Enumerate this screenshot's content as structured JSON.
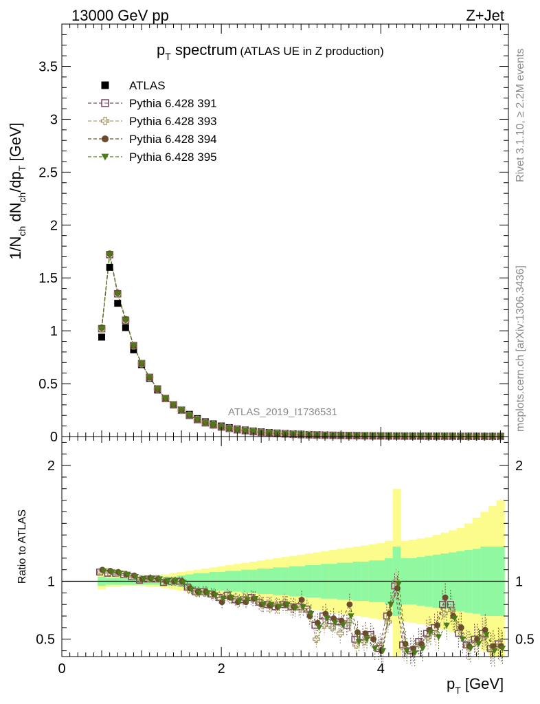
{
  "header": {
    "left": "13000 GeV pp",
    "right": "Z+Jet"
  },
  "plot_title": {
    "main": "p",
    "main_sub": "T",
    "main_rest": " spectrum",
    "paren": "(ATLAS UE in Z production)"
  },
  "side_labels": {
    "rivet": "Rivet 3.1.10, ≥ 2.2M events",
    "mcplots": "mcplots.cern.ch [arXiv:1306.3436]"
  },
  "watermark": "ATLAS_2019_I1736531",
  "axes": {
    "ylabel_main": "1/N",
    "ylabel_main_sub1": "ch",
    "ylabel_main_mid": " dN",
    "ylabel_main_sub2": "ch",
    "ylabel_main_mid2": "/dp",
    "ylabel_main_sub3": "T",
    "ylabel_main_rest": " [GeV]",
    "ylabel_ratio": "Ratio to ATLAS",
    "xlabel": "p",
    "xlabel_sub": "T",
    "xlabel_rest": " [GeV]"
  },
  "colors": {
    "atlas": "#000000",
    "p391": "#7b4a62",
    "p393": "#a89a6c",
    "p394": "#6b4a2e",
    "p395": "#4d7a1a",
    "band_green": "#90f8a0",
    "band_yellow": "#fcfc8c"
  },
  "chart_data": [
    {
      "type": "scatter",
      "title": "p_T spectrum (ATLAS UE in Z production)",
      "xlabel": "p_T [GeV]",
      "ylabel": "1/N_ch dN_ch/dp_T [GeV]",
      "xlim": [
        0,
        5.6
      ],
      "ylim": [
        0,
        3.9
      ],
      "yticks": [
        0,
        0.5,
        1,
        1.5,
        2,
        2.5,
        3,
        3.5
      ],
      "ytick_labels": [
        "0",
        "0.5",
        "1",
        "1.5",
        "2",
        "2.5",
        "3",
        "3.5"
      ],
      "legend_position": "top-left",
      "x": [
        0.5,
        0.6,
        0.7,
        0.8,
        0.9,
        1.0,
        1.1,
        1.2,
        1.3,
        1.4,
        1.5,
        1.6,
        1.7,
        1.8,
        1.9,
        2.0,
        2.1,
        2.2,
        2.3,
        2.4,
        2.5,
        2.6,
        2.7,
        2.8,
        2.9,
        3.0,
        3.1,
        3.2,
        3.3,
        3.4,
        3.5,
        3.6,
        3.7,
        3.8,
        3.9,
        4.0,
        4.1,
        4.2,
        4.3,
        4.4,
        4.5,
        4.6,
        4.7,
        4.8,
        4.9,
        5.0,
        5.1,
        5.2,
        5.3,
        5.4,
        5.5
      ],
      "series": [
        {
          "name": "ATLAS",
          "marker": "filled-square",
          "values": [
            0.94,
            1.6,
            1.26,
            1.03,
            0.82,
            0.68,
            0.55,
            0.44,
            0.36,
            0.3,
            0.25,
            0.21,
            0.17,
            0.14,
            0.12,
            0.1,
            0.085,
            0.072,
            0.062,
            0.053,
            0.045,
            0.039,
            0.034,
            0.03,
            0.026,
            0.023,
            0.02,
            0.018,
            0.016,
            0.014,
            0.013,
            0.012,
            0.011,
            0.01,
            0.009,
            0.008,
            0.008,
            0.007,
            0.007,
            0.006,
            0.006,
            0.005,
            0.005,
            0.005,
            0.004,
            0.004,
            0.004,
            0.004,
            0.003,
            0.003,
            0.003
          ]
        },
        {
          "name": "Pythia 6.428 391",
          "marker": "open-square",
          "values": [
            1.02,
            1.72,
            1.35,
            1.1,
            0.86,
            0.69,
            0.56,
            0.45,
            0.36,
            0.3,
            0.25,
            0.2,
            0.16,
            0.13,
            0.11,
            0.09,
            0.077,
            0.064,
            0.055,
            0.046,
            0.039,
            0.033,
            0.029,
            0.025,
            0.021,
            0.018,
            0.016,
            0.014,
            0.012,
            0.011,
            0.01,
            0.009,
            0.008,
            0.007,
            0.006,
            0.006,
            0.005,
            0.005,
            0.004,
            0.004,
            0.004,
            0.003,
            0.003,
            0.003,
            0.003,
            0.002,
            0.002,
            0.002,
            0.002,
            0.002,
            0.002
          ]
        },
        {
          "name": "Pythia 6.428 393",
          "marker": "open-cross",
          "values": [
            1.02,
            1.72,
            1.35,
            1.1,
            0.86,
            0.69,
            0.56,
            0.45,
            0.36,
            0.3,
            0.25,
            0.2,
            0.16,
            0.13,
            0.11,
            0.09,
            0.077,
            0.064,
            0.055,
            0.046,
            0.039,
            0.033,
            0.029,
            0.025,
            0.021,
            0.018,
            0.016,
            0.014,
            0.012,
            0.011,
            0.01,
            0.009,
            0.008,
            0.007,
            0.006,
            0.006,
            0.005,
            0.005,
            0.004,
            0.004,
            0.004,
            0.003,
            0.003,
            0.003,
            0.003,
            0.002,
            0.002,
            0.002,
            0.002,
            0.002,
            0.002
          ]
        },
        {
          "name": "Pythia 6.428 394",
          "marker": "filled-circle",
          "values": [
            1.03,
            1.73,
            1.36,
            1.11,
            0.86,
            0.69,
            0.56,
            0.45,
            0.36,
            0.3,
            0.25,
            0.2,
            0.16,
            0.13,
            0.11,
            0.09,
            0.077,
            0.064,
            0.055,
            0.046,
            0.039,
            0.033,
            0.029,
            0.025,
            0.021,
            0.018,
            0.016,
            0.014,
            0.012,
            0.011,
            0.01,
            0.009,
            0.008,
            0.007,
            0.006,
            0.006,
            0.005,
            0.005,
            0.004,
            0.004,
            0.004,
            0.003,
            0.003,
            0.003,
            0.003,
            0.002,
            0.002,
            0.002,
            0.002,
            0.002,
            0.002
          ]
        },
        {
          "name": "Pythia 6.428 395",
          "marker": "filled-triangle-down",
          "values": [
            1.02,
            1.72,
            1.35,
            1.1,
            0.86,
            0.69,
            0.56,
            0.45,
            0.36,
            0.3,
            0.25,
            0.2,
            0.16,
            0.13,
            0.11,
            0.09,
            0.077,
            0.064,
            0.055,
            0.046,
            0.039,
            0.033,
            0.029,
            0.025,
            0.021,
            0.018,
            0.016,
            0.014,
            0.012,
            0.011,
            0.01,
            0.009,
            0.008,
            0.007,
            0.006,
            0.006,
            0.005,
            0.005,
            0.004,
            0.004,
            0.004,
            0.003,
            0.003,
            0.003,
            0.003,
            0.002,
            0.002,
            0.002,
            0.002,
            0.002,
            0.002
          ]
        }
      ]
    },
    {
      "type": "scatter",
      "title": "",
      "xlabel": "p_T [GeV]",
      "ylabel": "Ratio to ATLAS",
      "xlim": [
        0,
        5.6
      ],
      "ylim": [
        0.35,
        2.25
      ],
      "xticks": [
        0,
        2,
        4
      ],
      "xtick_labels": [
        "0",
        "2",
        "4"
      ],
      "yticks": [
        0.5,
        1,
        2
      ],
      "ytick_labels": [
        "0.5",
        "1",
        "2"
      ],
      "reference_line": 1,
      "x": [
        0.5,
        0.6,
        0.7,
        0.8,
        0.9,
        1.0,
        1.1,
        1.2,
        1.3,
        1.4,
        1.5,
        1.6,
        1.7,
        1.8,
        1.9,
        2.0,
        2.1,
        2.2,
        2.3,
        2.4,
        2.5,
        2.6,
        2.7,
        2.8,
        2.9,
        3.0,
        3.1,
        3.2,
        3.3,
        3.4,
        3.5,
        3.6,
        3.7,
        3.8,
        3.9,
        4.0,
        4.1,
        4.2,
        4.3,
        4.4,
        4.5,
        4.6,
        4.7,
        4.8,
        4.9,
        5.0,
        5.1,
        5.2,
        5.3,
        5.4,
        5.5
      ],
      "band_stat_half_width": [
        0.04,
        0.03,
        0.03,
        0.03,
        0.03,
        0.03,
        0.03,
        0.03,
        0.04,
        0.04,
        0.05,
        0.06,
        0.07,
        0.07,
        0.08,
        0.08,
        0.09,
        0.09,
        0.1,
        0.1,
        0.11,
        0.11,
        0.12,
        0.12,
        0.13,
        0.13,
        0.14,
        0.14,
        0.15,
        0.15,
        0.16,
        0.16,
        0.17,
        0.17,
        0.18,
        0.18,
        0.2,
        0.3,
        0.2,
        0.2,
        0.21,
        0.22,
        0.23,
        0.24,
        0.25,
        0.26,
        0.27,
        0.28,
        0.3,
        0.3,
        0.3
      ],
      "band_total_half_width": [
        0.07,
        0.05,
        0.05,
        0.04,
        0.04,
        0.04,
        0.05,
        0.05,
        0.06,
        0.07,
        0.08,
        0.09,
        0.1,
        0.11,
        0.12,
        0.13,
        0.14,
        0.15,
        0.16,
        0.17,
        0.18,
        0.19,
        0.2,
        0.21,
        0.22,
        0.23,
        0.24,
        0.25,
        0.26,
        0.27,
        0.28,
        0.29,
        0.3,
        0.31,
        0.32,
        0.33,
        0.35,
        0.8,
        0.35,
        0.36,
        0.37,
        0.38,
        0.4,
        0.42,
        0.44,
        0.46,
        0.5,
        0.55,
        0.6,
        0.65,
        0.7
      ],
      "series": [
        {
          "name": "Pythia 6.428 391",
          "values": [
            1.08,
            1.07,
            1.07,
            1.06,
            1.04,
            1.01,
            1.02,
            1.02,
            0.99,
            1.0,
            1.0,
            0.95,
            0.91,
            0.91,
            0.89,
            0.86,
            0.88,
            0.84,
            0.84,
            0.86,
            0.82,
            0.8,
            0.78,
            0.8,
            0.78,
            0.78,
            0.76,
            0.62,
            0.7,
            0.66,
            0.65,
            0.62,
            0.5,
            0.52,
            0.54,
            0.42,
            0.7,
            0.96,
            0.45,
            0.4,
            0.48,
            0.55,
            0.6,
            0.8,
            0.8,
            0.55,
            0.45,
            0.5,
            0.55,
            0.42,
            0.46
          ]
        },
        {
          "name": "Pythia 6.428 393",
          "values": [
            1.08,
            1.08,
            1.07,
            1.06,
            1.04,
            1.02,
            1.02,
            1.02,
            1.0,
            1.0,
            0.99,
            0.93,
            0.9,
            0.9,
            0.88,
            0.85,
            0.87,
            0.84,
            0.86,
            0.85,
            0.81,
            0.8,
            0.79,
            0.82,
            0.76,
            0.76,
            0.74,
            0.5,
            0.62,
            0.6,
            0.55,
            0.65,
            0.45,
            0.48,
            0.52,
            0.45,
            0.65,
            1.0,
            0.42,
            0.38,
            0.46,
            0.52,
            0.55,
            0.72,
            0.75,
            0.6,
            0.44,
            0.48,
            0.52,
            0.4,
            0.45
          ]
        },
        {
          "name": "Pythia 6.428 394",
          "values": [
            1.1,
            1.09,
            1.08,
            1.06,
            1.05,
            1.02,
            1.03,
            1.02,
            1.0,
            1.0,
            1.0,
            0.94,
            0.91,
            0.91,
            0.89,
            0.82,
            0.86,
            0.82,
            0.82,
            0.85,
            0.8,
            0.79,
            0.78,
            0.8,
            0.78,
            0.84,
            0.7,
            0.64,
            0.72,
            0.68,
            0.66,
            0.8,
            0.56,
            0.55,
            0.5,
            0.4,
            0.72,
            0.94,
            0.46,
            0.42,
            0.46,
            0.58,
            0.62,
            0.86,
            0.7,
            0.6,
            0.44,
            0.5,
            0.58,
            0.44,
            0.44
          ]
        },
        {
          "name": "Pythia 6.428 395",
          "values": [
            1.09,
            1.08,
            1.07,
            1.06,
            1.04,
            1.02,
            1.02,
            1.02,
            1.0,
            1.0,
            0.99,
            0.93,
            0.9,
            0.9,
            0.88,
            0.85,
            0.86,
            0.83,
            0.84,
            0.85,
            0.8,
            0.8,
            0.78,
            0.8,
            0.77,
            0.78,
            0.72,
            0.6,
            0.68,
            0.64,
            0.62,
            0.7,
            0.48,
            0.5,
            0.42,
            0.4,
            0.8,
            0.98,
            0.4,
            0.38,
            0.42,
            0.56,
            0.52,
            0.62,
            0.68,
            0.5,
            0.42,
            0.46,
            0.54,
            0.4,
            0.42
          ]
        }
      ]
    }
  ]
}
